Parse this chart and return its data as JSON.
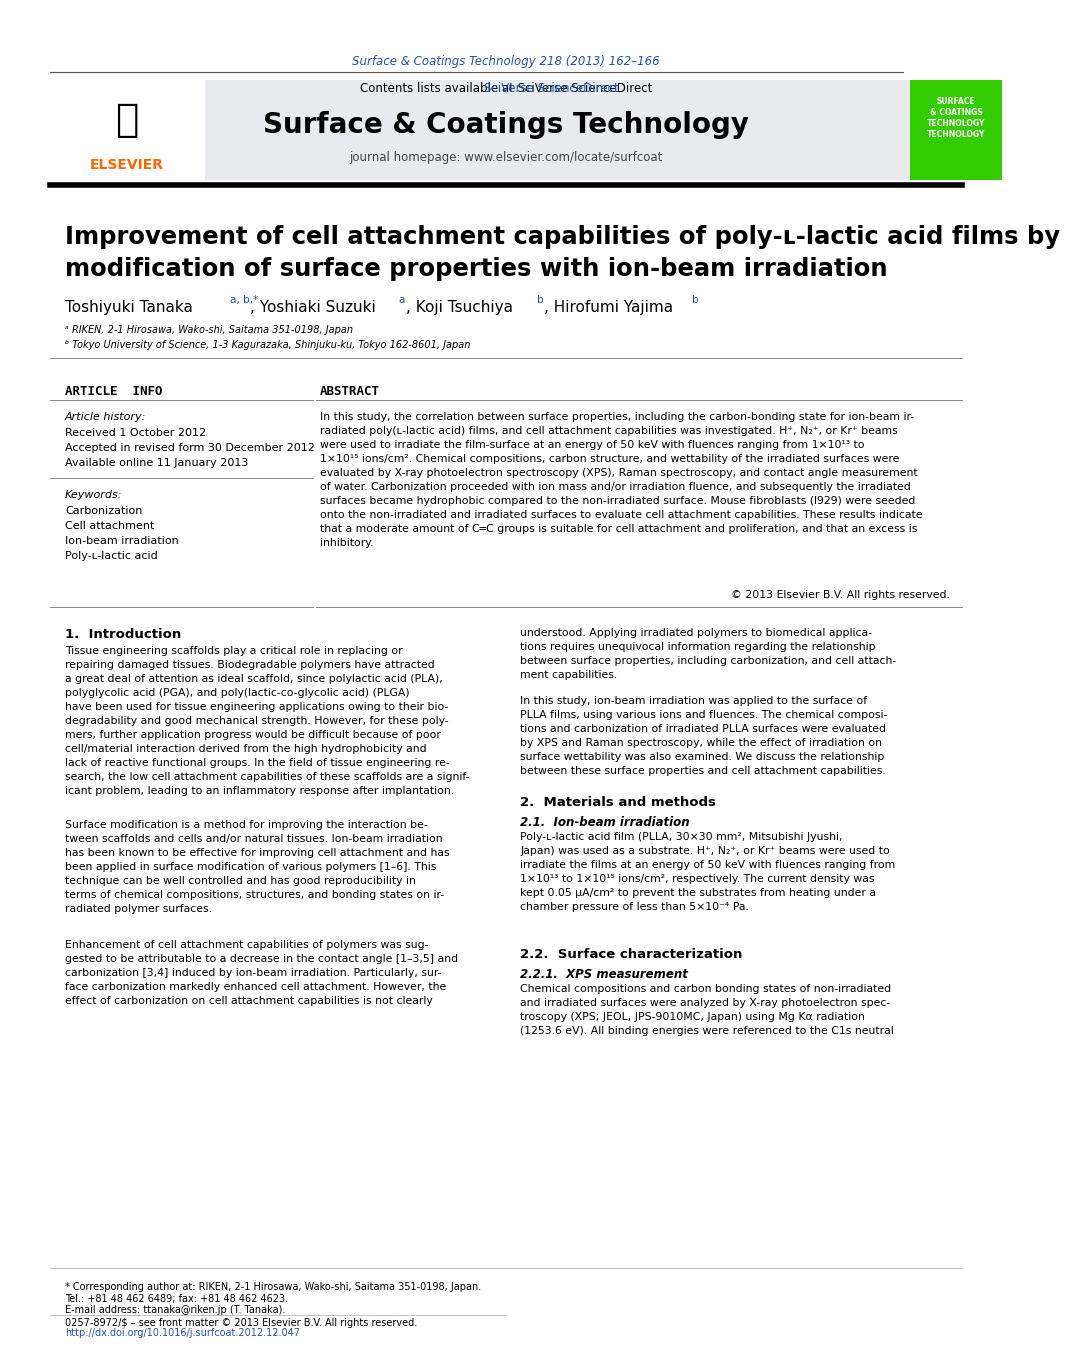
{
  "fig_width": 9.92,
  "fig_height": 13.23,
  "bg_color": "#ffffff",
  "header_journal_ref": "Surface & Coatings Technology 218 (2013) 162–166",
  "header_journal_ref_color": "#2255aa",
  "contents_text": "Contents lists available at ",
  "sciverse_text": "SciVerse ScienceDirect",
  "sciverse_color": "#2255aa",
  "journal_name": "Surface & Coatings Technology",
  "journal_homepage": "journal homepage: www.elsevier.com/locate/surfcoat",
  "elsevier_color": "#ff6600",
  "header_bg": "#e8eaf0",
  "green_box_color": "#33cc00",
  "title": "Improvement of cell attachment capabilities of poly-ʟ-lactic acid films by\nmodification of surface properties with ion-beam irradiation",
  "authors": "Toshiyuki Tanaka  ",
  "authors_super1": "a, b,*",
  "authors2": ", Yoshiaki Suzuki  ",
  "authors_super2": "a",
  "authors3": ", Koji Tsuchiya  ",
  "authors_super3": "b",
  "authors4": ", Hirofumi Yajima  ",
  "authors_super4": "b",
  "affil1": "ᵃ RIKEN, 2-1 Hirosawa, Wako-shi, Saitama 351-0198, Japan",
  "affil2": "ᵇ Tokyo University of Science, 1-3 Kagurazaka, Shinjuku-ku, Tokyo 162-8601, Japan",
  "article_info_title": "ARTICLE  INFO",
  "abstract_title": "ABSTRACT",
  "article_history_label": "Article history:",
  "received": "Received 1 October 2012",
  "accepted": "Accepted in revised form 30 December 2012",
  "available": "Available online 11 January 2013",
  "keywords_label": "Keywords:",
  "keywords": [
    "Carbonization",
    "Cell attachment",
    "Ion-beam irradiation",
    "Poly-ʟ-lactic acid"
  ],
  "abstract_text": "In this study, the correlation between surface properties, including the carbon-bonding state for ion-beam irradiated poly(ʟ-lactic acid) films, and cell attachment capabilities was investigated. H⁺, N₂⁺, or Kr⁺ beams were used to irradiate the film-surface at an energy of 50 keV with fluences ranging from 1×10¹³ to 1×10¹⁵ ions/cm². Chemical compositions, carbon structure, and wettability of the irradiated surfaces were evaluated by X-ray photoelectron spectroscopy (XPS), Raman spectroscopy, and contact angle measurement of water. Carbonization proceeded with ion mass and/or irradiation fluence, and subsequently the irradiated surfaces became hydrophobic compared to the non-irradiated surface. Mouse fibroblasts (l929) were seeded onto the non-irradiated and irradiated surfaces to evaluate cell attachment capabilities. These results indicate that a moderate amount of C═C groups is suitable for cell attachment and proliferation, and that an excess is inhibitory.",
  "copyright": "© 2013 Elsevier B.V. All rights reserved.",
  "intro_title": "1.  Introduction",
  "intro_text1": "Tissue engineering scaffolds play a critical role in replacing or\nrepairing damaged tissues. Biodegradable polymers have attracted\na great deal of attention as ideal scaffold, since polylactic acid (PLA),\npolyglycolic acid (PGA), and poly(lactic-co-glycolic acid) (PLGA)\nhave been used for tissue engineering applications owing to their bio-\ndegradability and good mechanical strength. However, for these poly-\nmers, further application progress would be difficult because of poor\ncell/material interaction derived from the high hydrophobicity and\nlack of reactive functional groups. In the field of tissue engineering re-\nsearch, the low cell attachment capabilities of these scaffolds are a signif-\nicant problem, leading to an inflammatory response after implantation.",
  "intro_text2": "Surface modification is a method for improving the interaction be-\ntween scaffolds and cells and/or natural tissues. Ion-beam irradiation\nhas been known to be effective for improving cell attachment and has\nbeen applied in surface modification of various polymers [1–6]. This\ntechnique can be well controlled and has good reproducibility in\nterms of chemical compositions, structures, and bonding states on ir-\nradiated polymer surfaces.",
  "intro_text3": "Enhancement of cell attachment capabilities of polymers was sug-\ngested to be attributable to a decrease in the contact angle [1–3,5] and\ncarbonization [3,4] induced by ion-beam irradiation. Particularly, sur-\nface carbonization markedly enhanced cell attachment. However, the\neffect of carbonization on cell attachment capabilities is not clearly",
  "right_intro_text": "understood. Applying irradiated polymers to biomedical applications requires unequivocal information regarding the relationship between surface properties, including carbonization, and cell attachment capabilities.",
  "right_intro_text2": "In this study, ion-beam irradiation was applied to the surface of PLLA films, using various ions and fluences. The chemical compositions and carbonization of irradiated PLLA surfaces were evaluated by XPS and Raman spectroscopy, while the effect of irradiation on surface wettability was also examined. We discuss the relationship between these surface properties and cell attachment capabilities.",
  "section2_title": "2.  Materials and methods",
  "section21_title": "2.1.  Ion-beam irradiation",
  "section21_text": "Poly-ʟ-lactic acid film (PLLA, 30×30 mm², Mitsubishi Jyushi, Japan) was used as a substrate. H⁺, N₂⁺, or Kr⁺ beams were used to irradiate the films at an energy of 50 keV with fluences ranging from 1×10¹³ to 1×10¹⁵ ions/cm², respectively. The current density was kept 0.05 μA/cm² to prevent the substrates from heating under a chamber pressure of less than 5×10⁻⁴ Pa.",
  "section22_title": "2.2.  Surface characterization",
  "section221_title": "2.2.1.  XPS measurement",
  "section221_text": "Chemical compositions and carbon bonding states of non-irradiated and irradiated surfaces were analyzed by X-ray photoelectron spectroscopy (XPS; JEOL, JPS-9010MC, Japan) using Mg Kα radiation (1253.6 eV). All binding energies were referenced to the C1s neutral",
  "footnote_star": "* Corresponding author at: RIKEN, 2-1 Hirosawa, Wako-shi, Saitama 351-0198, Japan.\nTel.: +81 48 462 6489; fax: +81 48 462 4623.",
  "footnote_email": "E-mail address: ttanaka@riken.jp (T. Tanaka).",
  "footnote_issn": "0257-8972/$ – see front matter © 2013 Elsevier B.V. All rights reserved.",
  "footnote_doi": "http://dx.doi.org/10.1016/j.surfcoat.2012.12.047"
}
